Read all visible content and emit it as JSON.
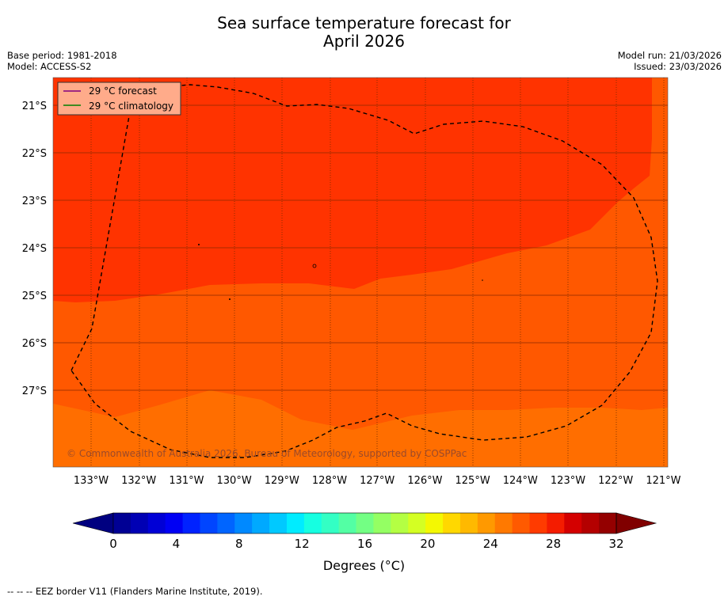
{
  "title": {
    "line1": "Sea surface temperature forecast for",
    "line2": "April 2026"
  },
  "meta": {
    "base_period": "Base period: 1981-2018",
    "model": "Model: ACCESS-S2",
    "model_run": "Model run: 21/03/2026",
    "issued": "Issued: 23/03/2026"
  },
  "legend": {
    "forecast_label": "29 °C  forecast",
    "climatology_label": "29 °C  climatology",
    "forecast_color": "#800080",
    "climatology_color": "#008000",
    "background": "#ffab8a"
  },
  "map": {
    "lat_labels": [
      "21°S",
      "22°S",
      "23°S",
      "24°S",
      "25°S",
      "26°S",
      "27°S"
    ],
    "lon_labels": [
      "133°W",
      "132°W",
      "131°W",
      "130°W",
      "129°W",
      "128°W",
      "127°W",
      "126°W",
      "125°W",
      "124°W",
      "123°W",
      "122°W",
      "121°W"
    ],
    "zone_colors": {
      "warm": "#ff3300",
      "mid": "#ff5800",
      "cool": "#ff6e00"
    },
    "copyright": "© Commonwealth of Australia 2026, Bureau of Meteorology, supported by COSPPac"
  },
  "colorbar": {
    "ticks": [
      "0",
      "4",
      "8",
      "12",
      "16",
      "20",
      "24",
      "28",
      "32"
    ],
    "label": "Degrees (°C)",
    "under_color": "#000080",
    "over_color": "#800000",
    "colors": [
      "#000094",
      "#0000b4",
      "#0000d6",
      "#0000f4",
      "#0022ff",
      "#0045ff",
      "#0065ff",
      "#0089ff",
      "#00a9ff",
      "#00c9ff",
      "#00ecff",
      "#16ffe1",
      "#33ffc4",
      "#53ffa4",
      "#73ff84",
      "#94ff63",
      "#b4ff43",
      "#d4ff23",
      "#f4f802",
      "#ffd800",
      "#ffb900",
      "#ff9900",
      "#ff7900",
      "#ff5a00",
      "#ff3b00",
      "#f41c00",
      "#d40000",
      "#b40000",
      "#940000"
    ]
  },
  "footer": "--  --  -- EEZ border V11 (Flanders Marine Institute, 2019)."
}
